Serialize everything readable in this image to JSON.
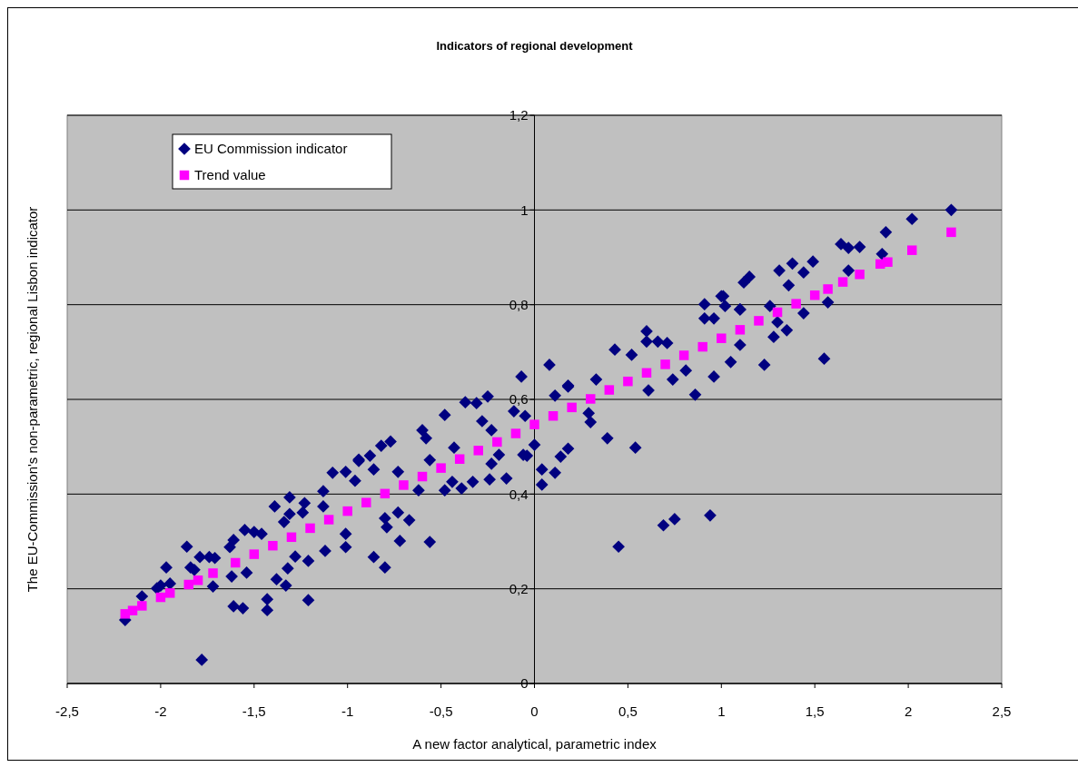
{
  "chart_data": {
    "type": "scatter",
    "title": "Indicators of regional development",
    "xlabel": "A new factor analytical, parametric index",
    "ylabel": "The EU-Commission's non-parametric, regional Lisbon indicator",
    "xlim": [
      -2.5,
      2.5
    ],
    "xticks": [
      {
        "value": -2.5,
        "label": "-2,5"
      },
      -2,
      {
        "value": -1.5,
        "label": "-1,5"
      },
      -1,
      {
        "value": -0.5,
        "label": "-0,5"
      },
      0,
      {
        "value": 0.5,
        "label": "0,5"
      },
      1,
      {
        "value": 1.5,
        "label": "1,5"
      },
      2,
      {
        "value": 2.5,
        "label": "2,5"
      }
    ],
    "ylim": [
      0,
      1.2
    ],
    "yticks": [
      0,
      {
        "value": 0.2,
        "label": "0,2"
      },
      {
        "value": 0.4,
        "label": "0,4"
      },
      {
        "value": 0.6,
        "label": "0,6"
      },
      {
        "value": 0.8,
        "label": "0,8"
      },
      1,
      {
        "value": 1.2,
        "label": "1,2"
      }
    ],
    "grid": "y",
    "legend": "top left",
    "series": [
      {
        "name": "EU Commission indicator",
        "color": "#000080",
        "marker": "diamond",
        "x": [
          -2.19,
          -2.1,
          -2.02,
          -2.0,
          -1.97,
          -1.95,
          -1.86,
          -1.84,
          -1.82,
          -1.78,
          -1.79,
          -1.74,
          -1.71,
          -1.72,
          -1.63,
          -1.61,
          -1.61,
          -1.56,
          -1.62,
          -1.54,
          -1.55,
          -1.5,
          -1.46,
          -1.43,
          -1.43,
          -1.39,
          -1.38,
          -1.34,
          -1.33,
          -1.32,
          -1.31,
          -1.31,
          -1.28,
          -1.24,
          -1.23,
          -1.21,
          -1.21,
          -1.13,
          -1.13,
          -1.12,
          -1.08,
          -1.01,
          -0.96,
          -0.94,
          -1.01,
          -1.01,
          -0.94,
          -0.88,
          -0.86,
          -0.82,
          -0.77,
          -0.73,
          -0.8,
          -0.79,
          -0.73,
          -0.67,
          -0.72,
          -0.86,
          -0.8,
          -0.56,
          -0.6,
          -0.58,
          -0.56,
          -0.62,
          -0.48,
          -0.43,
          -0.48,
          -0.44,
          -0.37,
          -0.31,
          -0.39,
          -0.33,
          -0.25,
          -0.28,
          -0.23,
          -0.24,
          -0.15,
          -0.23,
          -0.19,
          -0.07,
          -0.11,
          -0.05,
          -0.06,
          -0.04,
          0.0,
          0.08,
          0.04,
          0.04,
          0.11,
          0.14,
          0.18,
          0.18,
          0.11,
          0.39,
          0.54,
          0.45,
          0.69,
          0.75,
          0.94,
          0.43,
          0.6,
          0.6,
          0.71,
          0.86,
          0.91,
          1.01,
          0.96,
          1.05,
          0.61,
          0.3,
          0.29,
          0.18,
          0.33,
          0.52,
          0.66,
          0.74,
          0.81,
          0.91,
          0.96,
          1.1,
          1.12,
          2.23,
          2.02,
          1.88,
          1.86,
          1.64,
          1.68,
          1.74,
          1.68,
          1.55,
          1.49,
          1.38,
          1.31,
          1.44,
          1.36,
          1.15,
          1.0,
          1.02,
          1.1,
          1.26,
          1.57,
          1.44,
          1.35,
          1.28,
          1.23,
          1.3,
          1.1
        ],
        "values": [
          0.134,
          0.184,
          0.201,
          0.207,
          0.245,
          0.211,
          0.289,
          0.245,
          0.24,
          0.05,
          0.267,
          0.267,
          0.265,
          0.205,
          0.288,
          0.303,
          0.163,
          0.159,
          0.226,
          0.234,
          0.324,
          0.32,
          0.316,
          0.178,
          0.155,
          0.374,
          0.22,
          0.341,
          0.207,
          0.243,
          0.358,
          0.393,
          0.268,
          0.361,
          0.381,
          0.176,
          0.259,
          0.406,
          0.374,
          0.28,
          0.445,
          0.447,
          0.428,
          0.47,
          0.288,
          0.316,
          0.473,
          0.481,
          0.452,
          0.502,
          0.511,
          0.447,
          0.349,
          0.33,
          0.361,
          0.345,
          0.301,
          0.267,
          0.245,
          0.299,
          0.535,
          0.518,
          0.472,
          0.408,
          0.567,
          0.498,
          0.408,
          0.426,
          0.594,
          0.592,
          0.412,
          0.426,
          0.606,
          0.554,
          0.535,
          0.431,
          0.433,
          0.464,
          0.483,
          0.648,
          0.575,
          0.565,
          0.483,
          0.481,
          0.504,
          0.673,
          0.452,
          0.42,
          0.445,
          0.479,
          0.496,
          0.627,
          0.608,
          0.518,
          0.498,
          0.289,
          0.334,
          0.347,
          0.355,
          0.705,
          0.744,
          0.722,
          0.719,
          0.61,
          0.801,
          0.818,
          0.648,
          0.679,
          0.619,
          0.552,
          0.571,
          0.629,
          0.642,
          0.694,
          0.722,
          0.642,
          0.661,
          0.771,
          0.771,
          0.79,
          0.847,
          1.0,
          0.981,
          0.953,
          0.907,
          0.928,
          0.92,
          0.922,
          0.872,
          0.686,
          0.891,
          0.887,
          0.872,
          0.868,
          0.841,
          0.859,
          0.818,
          0.797,
          0.79,
          0.797,
          0.805,
          0.782,
          0.746,
          0.732,
          0.673,
          0.763,
          0.715
        ]
      },
      {
        "name": "Trend value",
        "color": "#ff00ff",
        "marker": "square",
        "x": [
          -2.19,
          -2.15,
          -2.1,
          -2.0,
          -1.95,
          -1.85,
          -1.8,
          -1.72,
          -1.6,
          -1.5,
          -1.4,
          -1.3,
          -1.2,
          -1.1,
          -1.0,
          -0.9,
          -0.8,
          -0.7,
          -0.6,
          -0.5,
          -0.4,
          -0.3,
          -0.2,
          -0.1,
          0,
          0.1,
          0.2,
          0.3,
          0.4,
          0.5,
          0.6,
          0.7,
          0.8,
          0.9,
          1.0,
          1.1,
          1.2,
          1.3,
          1.4,
          1.5,
          1.57,
          1.65,
          1.74,
          1.85,
          1.89,
          2.02,
          2.23
        ],
        "values": [
          0.147,
          0.154,
          0.164,
          0.182,
          0.191,
          0.209,
          0.218,
          0.233,
          0.255,
          0.273,
          0.291,
          0.309,
          0.328,
          0.346,
          0.364,
          0.382,
          0.401,
          0.419,
          0.437,
          0.455,
          0.474,
          0.492,
          0.51,
          0.528,
          0.547,
          0.565,
          0.583,
          0.601,
          0.62,
          0.638,
          0.656,
          0.674,
          0.693,
          0.711,
          0.729,
          0.747,
          0.766,
          0.784,
          0.802,
          0.82,
          0.833,
          0.848,
          0.864,
          0.886,
          0.89,
          0.915,
          0.953
        ]
      }
    ]
  }
}
